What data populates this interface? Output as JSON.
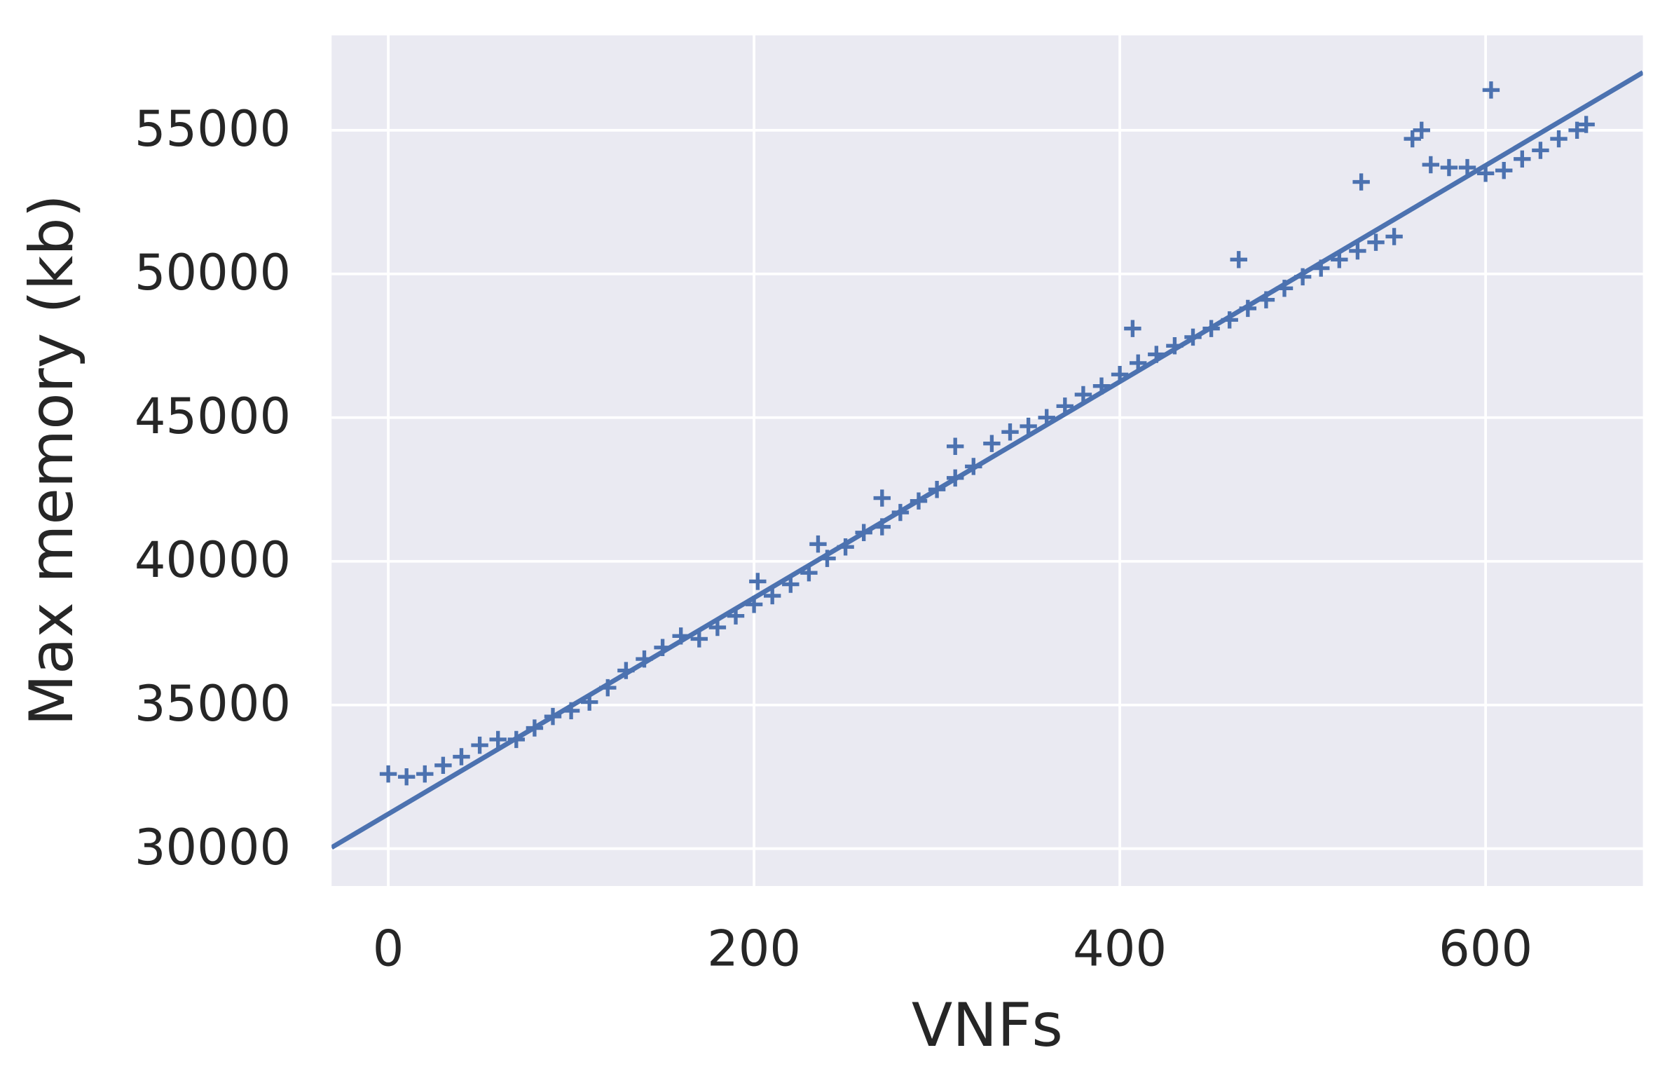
{
  "chart_data": {
    "type": "scatter",
    "x_label": "VNFs",
    "y_label": "Max memory (kb)",
    "xlim": [
      -31,
      686
    ],
    "ylim": [
      28700,
      58300
    ],
    "xticks": [
      0,
      200,
      400,
      600
    ],
    "yticks": [
      30000,
      35000,
      40000,
      45000,
      50000,
      55000
    ],
    "grid": true,
    "background": "#eaeaf2",
    "series": [
      {
        "type": "scatter",
        "marker": "+",
        "color": "#4c72b0",
        "x": [
          0,
          10,
          20,
          30,
          40,
          50,
          60,
          70,
          80,
          90,
          100,
          110,
          120,
          130,
          140,
          150,
          160,
          170,
          180,
          190,
          200,
          210,
          220,
          230,
          240,
          250,
          260,
          270,
          280,
          290,
          300,
          310,
          320,
          330,
          340,
          350,
          360,
          370,
          380,
          390,
          400,
          410,
          420,
          430,
          440,
          450,
          460,
          470,
          480,
          490,
          500,
          510,
          520,
          530,
          540,
          550,
          560,
          565,
          570,
          580,
          590,
          600,
          610,
          620,
          630,
          640,
          650,
          655,
          202,
          235,
          270,
          310,
          407,
          465,
          532,
          603
        ],
        "values": [
          32600,
          32500,
          32600,
          32900,
          33200,
          33600,
          33800,
          33800,
          34200,
          34600,
          34800,
          35100,
          35600,
          36200,
          36600,
          37000,
          37400,
          37300,
          37700,
          38100,
          38500,
          38800,
          39200,
          39600,
          40100,
          40500,
          41000,
          41200,
          41700,
          42100,
          42500,
          42900,
          43300,
          44100,
          44500,
          44700,
          45000,
          45400,
          45800,
          46100,
          46500,
          46900,
          47200,
          47500,
          47800,
          48100,
          48400,
          48800,
          49100,
          49500,
          49900,
          50200,
          50500,
          50800,
          51100,
          51300,
          54700,
          55000,
          53800,
          53700,
          53700,
          53500,
          53600,
          54000,
          54300,
          54700,
          55000,
          55200,
          39300,
          40600,
          42200,
          44000,
          48100,
          50500,
          53200,
          56400
        ]
      },
      {
        "type": "line",
        "color": "#4c72b0",
        "x": [
          -31,
          686
        ],
        "values": [
          30040,
          57010
        ]
      }
    ]
  }
}
